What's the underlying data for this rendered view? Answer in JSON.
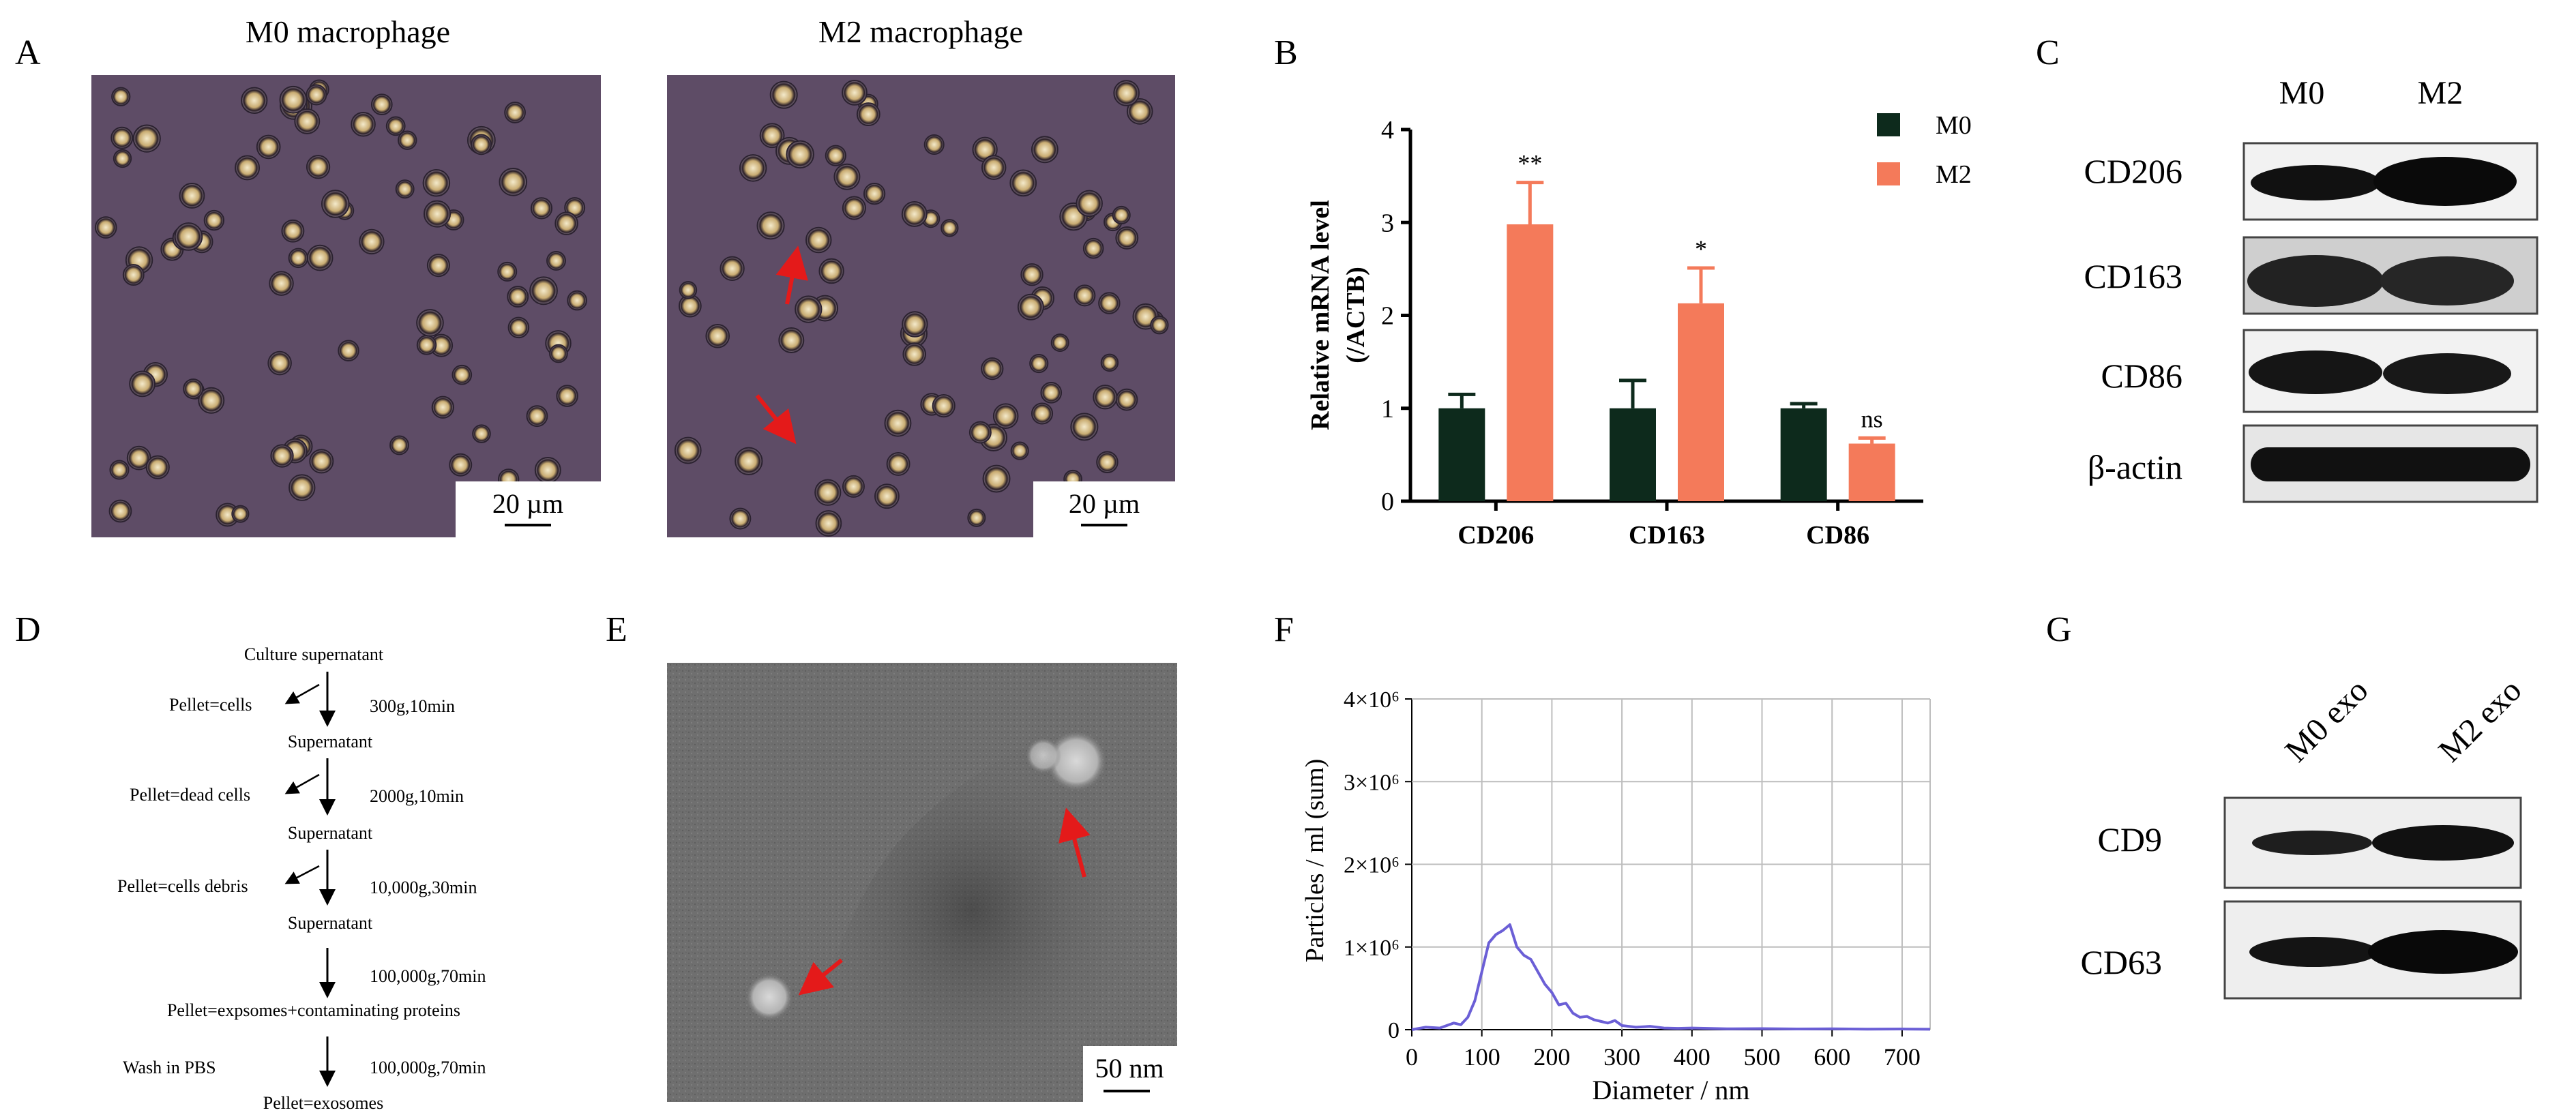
{
  "panels": {
    "A": {
      "letter": "A",
      "titles": [
        "M0 macrophage",
        "M2 macrophage"
      ],
      "scalebar": "20 µm"
    },
    "B": {
      "letter": "B",
      "legend": [
        "M0",
        "M2"
      ],
      "significance": [
        "**",
        "*",
        "ns"
      ]
    },
    "C": {
      "letter": "C",
      "columns": [
        "M0",
        "M2"
      ],
      "rows": [
        "CD206",
        "CD163",
        "CD86",
        "β-actin"
      ]
    },
    "D": {
      "letter": "D",
      "steps": [
        "Culture supernatant",
        "Pellet=cells",
        "300g,10min",
        "Supernatant",
        "Pellet=dead cells",
        "2000g,10min",
        "Supernatant",
        "Pellet=cells debris",
        "10,000g,30min",
        "Supernatant",
        "100,000g,70min",
        "Pellet=expsomes+contaminating proteins",
        "Wash in PBS",
        "100,000g,70min",
        "Pellet=exosomes"
      ]
    },
    "E": {
      "letter": "E",
      "scalebar": "50 nm"
    },
    "F": {
      "letter": "F"
    },
    "G": {
      "letter": "G",
      "columns": [
        "M0 exo",
        "M2 exo"
      ],
      "rows": [
        "CD9",
        "CD63"
      ]
    }
  },
  "colors": {
    "m0": "#0d2a1c",
    "m2": "#f47a5a",
    "micrograph": "#5e4c66",
    "tem": "#6f6f6f",
    "line": "#6b5fd6",
    "arrow": "#e41a1a"
  },
  "chart_data": [
    {
      "type": "bar",
      "categories": [
        "CD206",
        "CD163",
        "CD86"
      ],
      "series": [
        {
          "name": "M0",
          "values": [
            1.0,
            1.0,
            1.0
          ],
          "errors": [
            0.15,
            0.3,
            0.05
          ]
        },
        {
          "name": "M2",
          "values": [
            2.98,
            2.13,
            0.62
          ],
          "errors": [
            0.45,
            0.38,
            0.06
          ]
        }
      ],
      "annotations": [
        "**",
        "*",
        "ns"
      ],
      "ylabel": "Relative mRNA level (/ACTB)",
      "ylim": [
        0,
        4
      ],
      "yticks": [
        "0",
        "1",
        "2",
        "3",
        "4"
      ],
      "legend": "top-right",
      "grid": false
    },
    {
      "type": "line",
      "xlabel": "Diameter  / nm",
      "ylabel": "Particles / ml (sum)",
      "xlim": [
        0,
        740
      ],
      "ylim": [
        0,
        4000000
      ],
      "xticks": [
        "0",
        "100",
        "200",
        "300",
        "400",
        "500",
        "600",
        "700"
      ],
      "yticks": [
        "0",
        "1×10⁶",
        "2×10⁶",
        "3×10⁶",
        "4×10⁶"
      ],
      "grid": true,
      "x": [
        0,
        20,
        40,
        60,
        70,
        80,
        90,
        100,
        110,
        120,
        130,
        140,
        150,
        160,
        170,
        180,
        190,
        200,
        210,
        220,
        230,
        240,
        250,
        260,
        270,
        280,
        290,
        300,
        320,
        340,
        360,
        380,
        400,
        450,
        500,
        550,
        600,
        650,
        700,
        740
      ],
      "y": [
        0,
        30000,
        20000,
        80000,
        60000,
        150000,
        350000,
        700000,
        1050000,
        1150000,
        1200000,
        1270000,
        1000000,
        900000,
        850000,
        700000,
        550000,
        450000,
        300000,
        320000,
        200000,
        150000,
        160000,
        120000,
        100000,
        80000,
        110000,
        50000,
        30000,
        40000,
        20000,
        15000,
        20000,
        10000,
        12000,
        8000,
        10000,
        6000,
        8000,
        5000
      ]
    }
  ]
}
